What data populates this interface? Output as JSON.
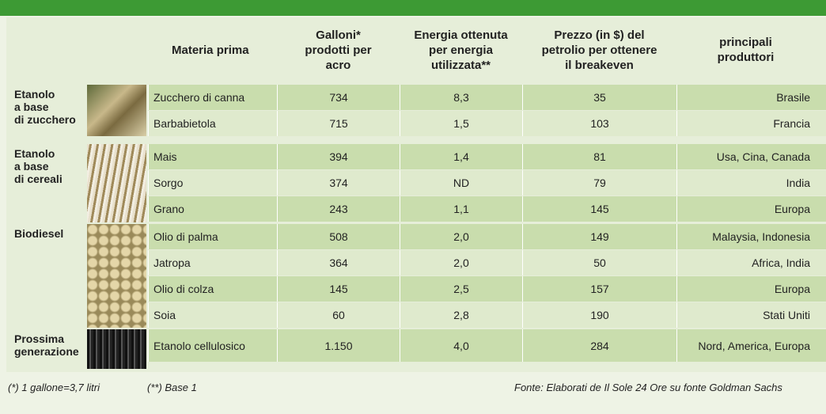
{
  "table": {
    "columns": [
      "Materia prima",
      "Galloni*\nprodotti per\nacro",
      "Energia ottenuta\nper energia\nutilizzata**",
      "Prezzo (in $) del\npetrolio per ottenere\nil breakeven",
      "principali\nproduttori"
    ],
    "groups": [
      {
        "label": "Etanolo\na base\ndi zucchero",
        "rows": [
          [
            "Zucchero di canna",
            "734",
            "8,3",
            "35",
            "Brasile"
          ],
          [
            "Barbabietola",
            "715",
            "1,5",
            "103",
            "Francia"
          ]
        ]
      },
      {
        "label": "Etanolo\na base\ndi cereali",
        "rows": [
          [
            "Mais",
            "394",
            "1,4",
            "81",
            "Usa, Cina, Canada"
          ],
          [
            "Sorgo",
            "374",
            "ND",
            "79",
            "India"
          ],
          [
            "Grano",
            "243",
            "1,1",
            "145",
            "Europa"
          ]
        ]
      },
      {
        "label": "Biodiesel",
        "rows": [
          [
            "Olio di palma",
            "508",
            "2,0",
            "149",
            "Malaysia, Indonesia"
          ],
          [
            "Jatropa",
            "364",
            "2,0",
            "50",
            "Africa, India"
          ],
          [
            "Olio di colza",
            "145",
            "2,5",
            "157",
            "Europa"
          ],
          [
            "Soia",
            "60",
            "2,8",
            "190",
            "Stati Uniti"
          ]
        ]
      },
      {
        "label": "Prossima\ngenerazione",
        "rows": [
          [
            "Etanolo cellulosico",
            "1.150",
            "4,0",
            "284",
            "Nord, America, Europa"
          ]
        ]
      }
    ]
  },
  "footnotes": {
    "gallon": "(*) 1 gallone=3,7 litri",
    "base": "(**) Base 1",
    "source": "Fonte: Elaborati de Il Sole 24 Ore su fonte Goldman Sachs"
  }
}
